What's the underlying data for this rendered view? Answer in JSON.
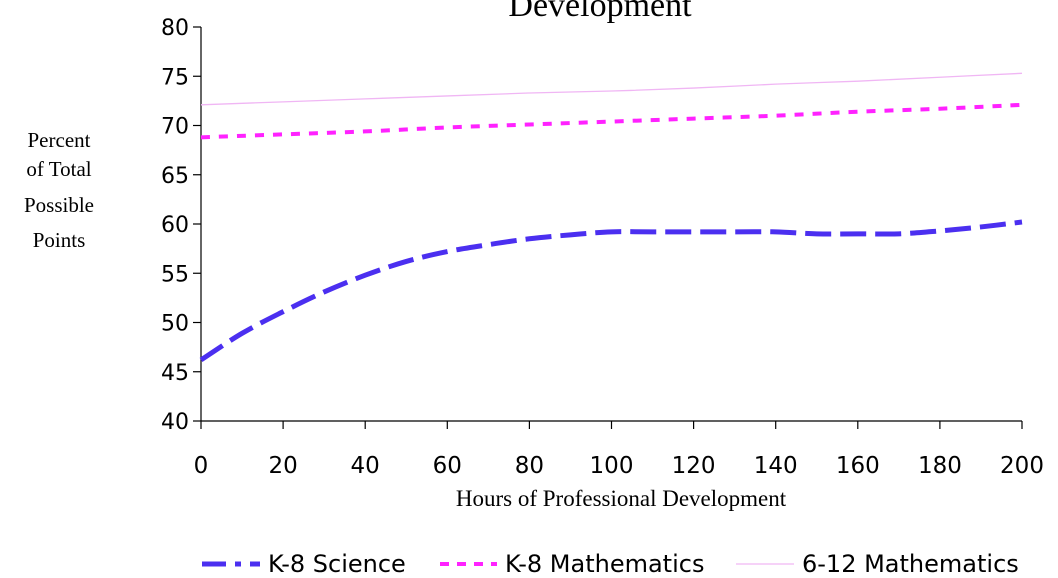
{
  "chart_data": {
    "type": "line",
    "title": "Development",
    "xlabel": "Hours of Professional Development",
    "ylabel_lines": [
      "Percent",
      "of Total",
      "Possible",
      "Points"
    ],
    "xlim": [
      0,
      200
    ],
    "ylim": [
      40,
      80
    ],
    "x_ticks": [
      0,
      20,
      40,
      60,
      80,
      100,
      120,
      140,
      160,
      180,
      200
    ],
    "y_ticks": [
      40,
      45,
      50,
      55,
      60,
      65,
      70,
      75,
      80
    ],
    "grid": false,
    "legend_position": "bottom",
    "series": [
      {
        "name": "K-8 Science",
        "color": "#4b2ff0",
        "style": "long-dash",
        "x": [
          0,
          10,
          20,
          30,
          40,
          50,
          60,
          70,
          80,
          90,
          100,
          110,
          120,
          130,
          140,
          150,
          160,
          170,
          180,
          190,
          200
        ],
        "y": [
          46.2,
          48.9,
          51.1,
          53.1,
          54.8,
          56.2,
          57.2,
          57.9,
          58.5,
          58.9,
          59.2,
          59.2,
          59.2,
          59.2,
          59.2,
          59.0,
          59.0,
          59.0,
          59.3,
          59.7,
          60.2
        ]
      },
      {
        "name": "K-8 Mathematics",
        "color": "#ff22ff",
        "style": "short-dash",
        "x": [
          0,
          20,
          40,
          60,
          80,
          100,
          120,
          140,
          160,
          180,
          200
        ],
        "y": [
          68.8,
          69.1,
          69.4,
          69.8,
          70.1,
          70.4,
          70.7,
          71.0,
          71.4,
          71.7,
          72.1
        ]
      },
      {
        "name": "6-12 Mathematics",
        "color": "#f0b6f4",
        "style": "thin-solid",
        "x": [
          0,
          20,
          40,
          60,
          80,
          100,
          120,
          140,
          160,
          180,
          200
        ],
        "y": [
          72.1,
          72.4,
          72.7,
          73.0,
          73.3,
          73.5,
          73.8,
          74.2,
          74.5,
          74.9,
          75.3
        ]
      }
    ]
  }
}
